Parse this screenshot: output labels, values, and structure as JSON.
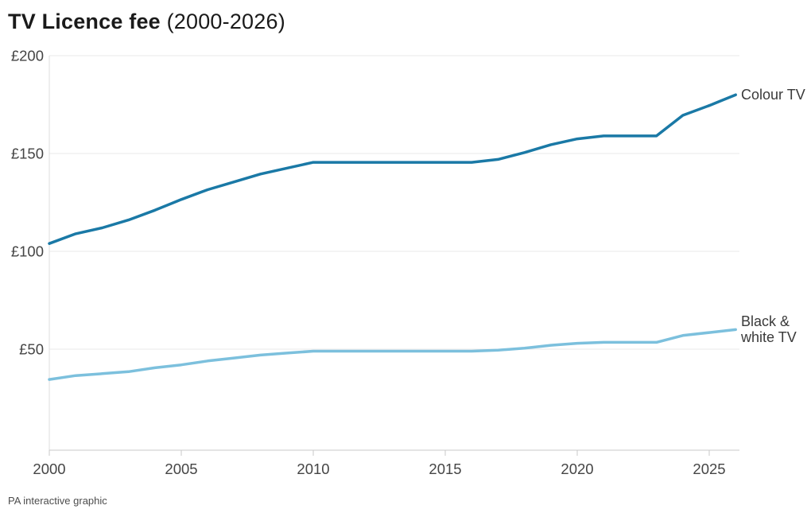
{
  "header": {
    "title": "TV Licence fee",
    "range": "(2000-2026)"
  },
  "footer": {
    "credit": "PA interactive graphic"
  },
  "colors": {
    "colour_tv_line": "#1a79a6",
    "bw_tv_line": "#7cc0dd",
    "gridline": "#e9e9e9",
    "axis_line": "#c9c9c9",
    "plot_left_border": "#dcdcdc",
    "tick_label": "#454545",
    "title_text": "#1a1a1a",
    "series_label_text": "#3a3a3a"
  },
  "chart_data": {
    "type": "line",
    "title": "TV Licence fee",
    "subtitle": "(2000-2026)",
    "xlabel": "",
    "ylabel": "",
    "grid": "horizontal",
    "legend_position": "end-of-line",
    "xlim": [
      2000,
      2026
    ],
    "ylim": [
      0,
      200
    ],
    "x": [
      2000,
      2001,
      2002,
      2003,
      2004,
      2005,
      2006,
      2007,
      2008,
      2009,
      2010,
      2011,
      2012,
      2013,
      2014,
      2015,
      2016,
      2017,
      2018,
      2019,
      2020,
      2021,
      2022,
      2023,
      2024,
      2025,
      2026
    ],
    "xticks": [
      2000,
      2005,
      2010,
      2015,
      2020,
      2025
    ],
    "xtick_labels": [
      "2000",
      "2005",
      "2010",
      "2015",
      "2020",
      "2025"
    ],
    "ytick_values": [
      200,
      150,
      100,
      50
    ],
    "ytick_labels": [
      "£200",
      "£150",
      "£100",
      "£50"
    ],
    "currency": "£",
    "series": [
      {
        "name": "Colour TV",
        "color": "#1a79a6",
        "values": [
          104,
          109,
          112,
          116,
          121,
          126.5,
          131.5,
          135.5,
          139.5,
          142.5,
          145.5,
          145.5,
          145.5,
          145.5,
          145.5,
          145.5,
          145.5,
          147,
          150.5,
          154.5,
          157.5,
          159,
          159,
          159,
          169.5,
          174.5,
          180
        ]
      },
      {
        "name": "Black & white TV",
        "color": "#7cc0dd",
        "values": [
          34.5,
          36.5,
          37.5,
          38.5,
          40.5,
          42,
          44,
          45.5,
          47,
          48,
          49,
          49,
          49,
          49,
          49,
          49,
          49,
          49.5,
          50.5,
          52,
          53,
          53.5,
          53.5,
          53.5,
          57,
          58.5,
          60
        ]
      }
    ]
  }
}
